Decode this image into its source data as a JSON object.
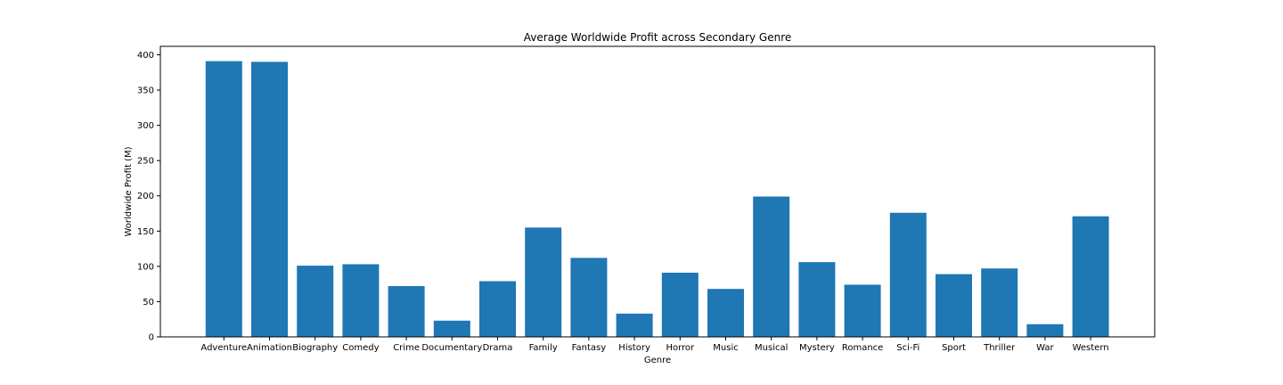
{
  "chart_data": {
    "type": "bar",
    "title": "Average Worldwide Profit across Secondary Genre",
    "xlabel": "Genre",
    "ylabel": "Worldwide Profit (M)",
    "categories": [
      "Adventure",
      "Animation",
      "Biography",
      "Comedy",
      "Crime",
      "Documentary",
      "Drama",
      "Family",
      "Fantasy",
      "History",
      "Horror",
      "Music",
      "Musical",
      "Mystery",
      "Romance",
      "Sci-Fi",
      "Sport",
      "Thriller",
      "War",
      "Western"
    ],
    "values": [
      391,
      390,
      101,
      103,
      72,
      23,
      79,
      155,
      112,
      33,
      91,
      68,
      199,
      106,
      74,
      176,
      89,
      97,
      18,
      171
    ],
    "ylim": [
      0,
      412
    ],
    "yticks": [
      0,
      50,
      100,
      150,
      200,
      250,
      300,
      350,
      400
    ],
    "bar_color": "#1f77b4",
    "grid": false
  }
}
